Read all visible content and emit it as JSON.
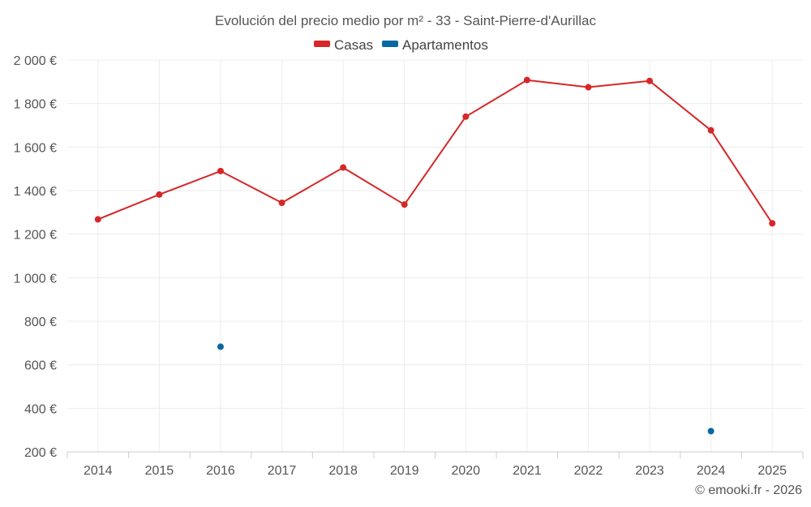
{
  "chart_data": {
    "type": "line",
    "title": "Evolución del precio medio por m² - 33 - Saint-Pierre-d'Aurillac",
    "categories": [
      "2014",
      "2015",
      "2016",
      "2017",
      "2018",
      "2019",
      "2020",
      "2021",
      "2022",
      "2023",
      "2024",
      "2025"
    ],
    "series": [
      {
        "name": "Casas",
        "color": "#d62728",
        "values": [
          1268,
          1382,
          1490,
          1344,
          1506,
          1336,
          1740,
          1908,
          1875,
          1904,
          1677,
          1250
        ]
      },
      {
        "name": "Apartamentos",
        "color": "#0868a5",
        "values": [
          null,
          null,
          683,
          null,
          null,
          null,
          null,
          null,
          null,
          null,
          295,
          null
        ]
      }
    ],
    "ylim": [
      200,
      2000
    ],
    "yticks": [
      200,
      400,
      600,
      800,
      1000,
      1200,
      1400,
      1600,
      1800,
      2000
    ],
    "ytick_labels": [
      "200 €",
      "400 €",
      "600 €",
      "800 €",
      "1 000 €",
      "1 200 €",
      "1 400 €",
      "1 600 €",
      "1 800 €",
      "2 000 €"
    ],
    "legend_position": "top-center",
    "grid": true
  },
  "credit": "© emooki.fr - 2026"
}
